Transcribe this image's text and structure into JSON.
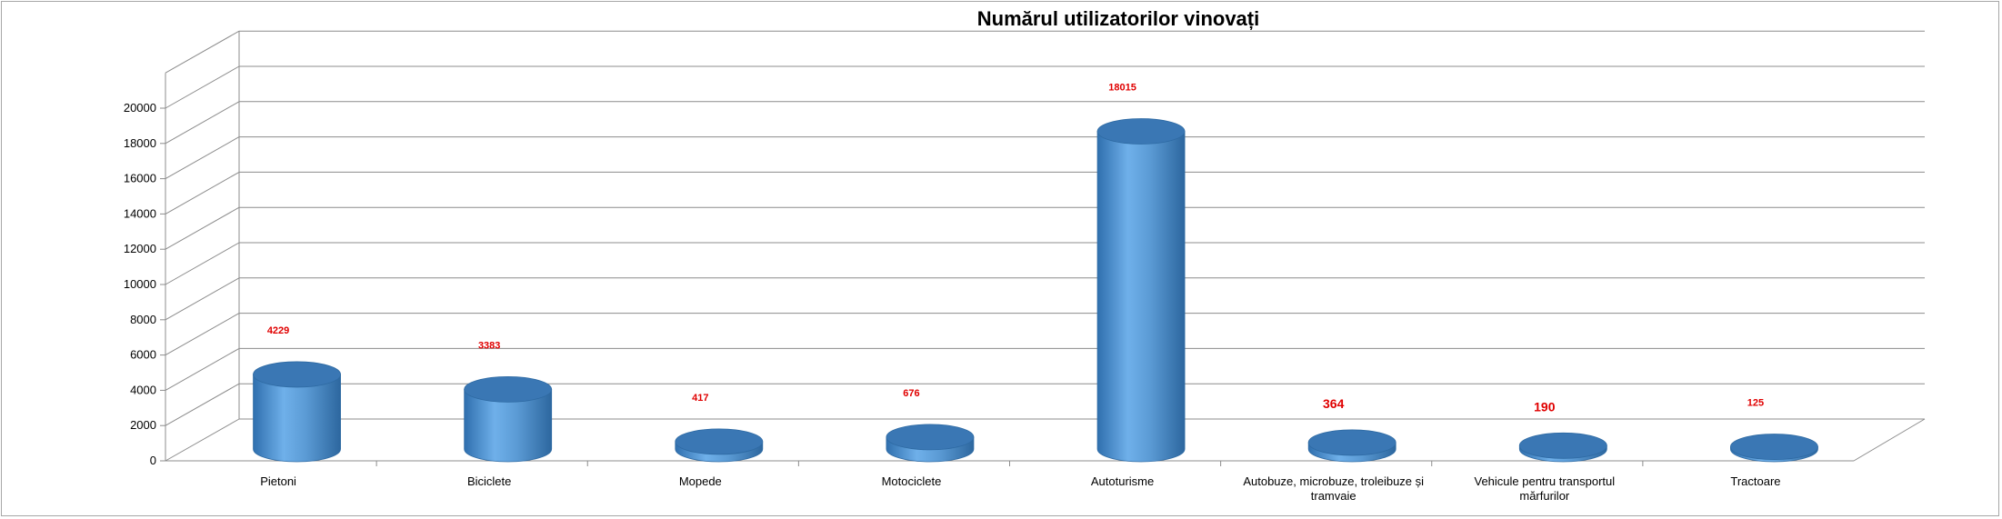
{
  "chart_data": {
    "type": "bar",
    "style": "3d-cylinder",
    "title": "Numărul utilizatorilor vinovați",
    "categories": [
      "Pietoni",
      "Biciclete",
      "Mopede",
      "Motociclete",
      "Autoturisme",
      "Autobuze, microbuze, troleibuze și tramvaie",
      "Vehicule pentru transportul mărfurilor",
      "Tractoare"
    ],
    "category_lines": [
      [
        "Pietoni"
      ],
      [
        "Biciclete"
      ],
      [
        "Mopede"
      ],
      [
        "Motociclete"
      ],
      [
        "Autoturisme"
      ],
      [
        "Autobuze, microbuze, troleibuze și",
        "tramvaie"
      ],
      [
        "Vehicule pentru transportul",
        "mărfurilor"
      ],
      [
        "Tractoare"
      ]
    ],
    "values": [
      4229,
      3383,
      417,
      676,
      18015,
      364,
      190,
      125
    ],
    "value_labels": [
      "4229",
      "3383",
      "417",
      "676",
      "18015",
      "364",
      "190",
      "125"
    ],
    "yticks": [
      "0",
      "2000",
      "4000",
      "6000",
      "8000",
      "10000",
      "12000",
      "14000",
      "16000",
      "18000",
      "20000"
    ],
    "ylim": [
      0,
      22000
    ],
    "grid": true,
    "legend": "none",
    "colors": {
      "bar_body": "#5b9bd5",
      "bar_dark": "#2e6aa3",
      "bar_top": "#3a77b4",
      "label": "#e00000",
      "grid": "#8c8c8c"
    }
  }
}
